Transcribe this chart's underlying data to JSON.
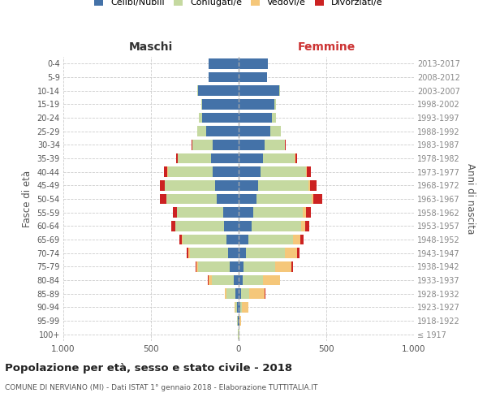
{
  "age_groups": [
    "100+",
    "95-99",
    "90-94",
    "85-89",
    "80-84",
    "75-79",
    "70-74",
    "65-69",
    "60-64",
    "55-59",
    "50-54",
    "45-49",
    "40-44",
    "35-39",
    "30-34",
    "25-29",
    "20-24",
    "15-19",
    "10-14",
    "5-9",
    "0-4"
  ],
  "birth_years": [
    "≤ 1917",
    "1918-1922",
    "1923-1927",
    "1928-1932",
    "1933-1937",
    "1938-1942",
    "1943-1947",
    "1948-1952",
    "1953-1957",
    "1958-1962",
    "1963-1967",
    "1968-1972",
    "1973-1977",
    "1978-1982",
    "1983-1987",
    "1988-1992",
    "1993-1997",
    "1998-2002",
    "2003-2007",
    "2008-2012",
    "2013-2017"
  ],
  "maschi": {
    "celibi": [
      2,
      4,
      8,
      20,
      30,
      50,
      60,
      70,
      85,
      90,
      125,
      135,
      150,
      158,
      150,
      185,
      210,
      210,
      230,
      170,
      170
    ],
    "coniugati": [
      1,
      3,
      10,
      50,
      125,
      180,
      220,
      250,
      275,
      260,
      285,
      285,
      255,
      190,
      115,
      50,
      18,
      5,
      4,
      2,
      2
    ],
    "vedovi": [
      0,
      0,
      4,
      10,
      18,
      9,
      7,
      5,
      3,
      2,
      2,
      1,
      1,
      0,
      0,
      0,
      0,
      0,
      0,
      0,
      0
    ],
    "divorziati": [
      0,
      0,
      0,
      1,
      2,
      8,
      10,
      12,
      20,
      25,
      38,
      28,
      22,
      10,
      5,
      2,
      0,
      0,
      0,
      0,
      0
    ]
  },
  "femmine": {
    "nubili": [
      2,
      3,
      7,
      12,
      22,
      30,
      40,
      55,
      75,
      85,
      100,
      110,
      125,
      140,
      150,
      180,
      190,
      205,
      230,
      160,
      165
    ],
    "coniugate": [
      1,
      3,
      10,
      50,
      115,
      180,
      225,
      255,
      280,
      280,
      315,
      290,
      260,
      180,
      115,
      60,
      22,
      7,
      4,
      2,
      2
    ],
    "vedove": [
      1,
      8,
      38,
      88,
      98,
      92,
      68,
      43,
      23,
      18,
      11,
      7,
      4,
      2,
      1,
      0,
      0,
      0,
      0,
      0,
      0
    ],
    "divorziate": [
      0,
      0,
      1,
      2,
      3,
      10,
      12,
      18,
      25,
      28,
      52,
      36,
      23,
      10,
      4,
      2,
      0,
      0,
      0,
      0,
      0
    ]
  },
  "colors": {
    "celibi": "#4472a8",
    "coniugati": "#c5d9a0",
    "vedovi": "#f5c77a",
    "divorziati": "#cc2222"
  },
  "xlim": 1000,
  "title": "Popolazione per età, sesso e stato civile - 2018",
  "subtitle": "COMUNE DI NERVIANO (MI) - Dati ISTAT 1° gennaio 2018 - Elaborazione TUTTITALIA.IT",
  "ylabel_left": "Fasce di età",
  "ylabel_right": "Anni di nascita",
  "xlabel_left": "Maschi",
  "xlabel_right": "Femmine",
  "legend_labels": [
    "Celibi/Nubili",
    "Coniugati/e",
    "Vedovi/e",
    "Divorziati/e"
  ]
}
